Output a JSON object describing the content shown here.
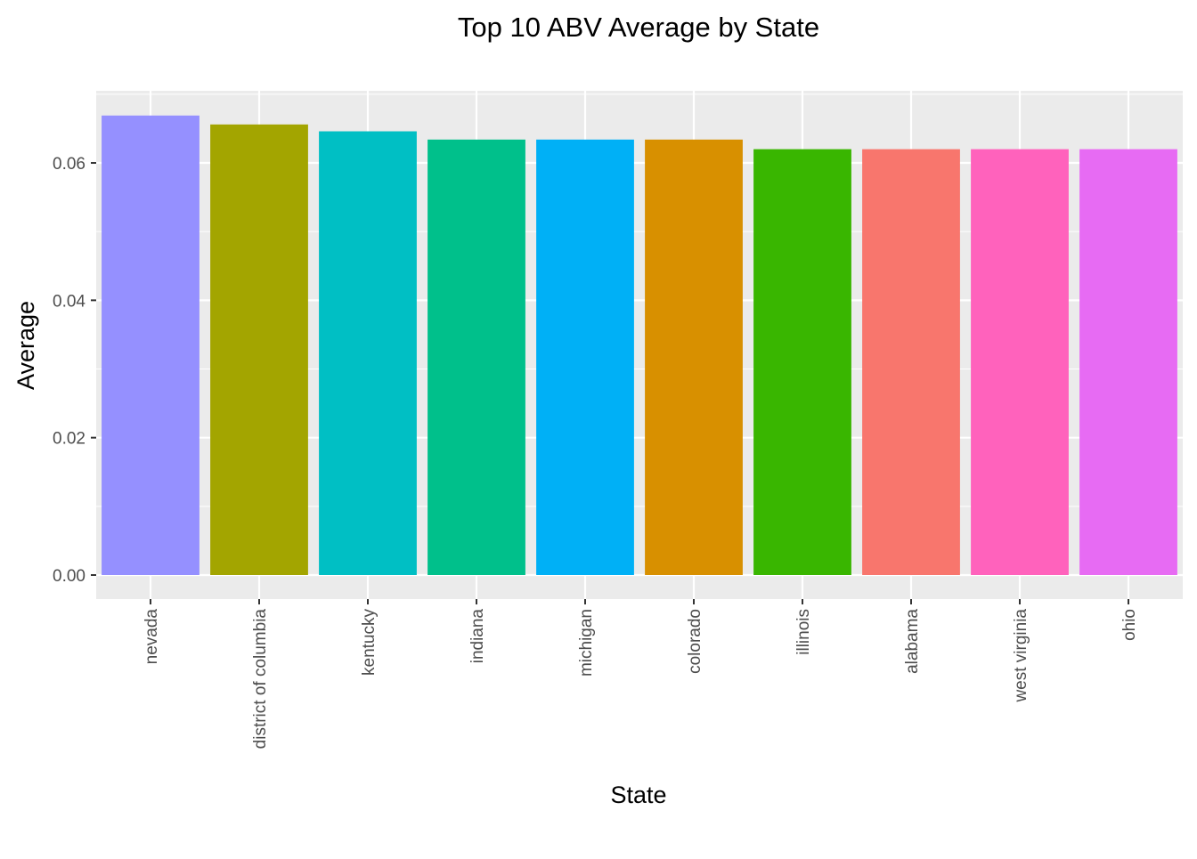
{
  "chart_data": {
    "type": "bar",
    "title": "Top 10 ABV Average by State",
    "xlabel": "State",
    "ylabel": "Average",
    "categories": [
      "nevada",
      "district of columbia",
      "kentucky",
      "indiana",
      "michigan",
      "colorado",
      "illinois",
      "alabama",
      "west virginia",
      "ohio"
    ],
    "values": [
      0.0669,
      0.0656,
      0.0646,
      0.0634,
      0.0634,
      0.0634,
      0.062,
      0.062,
      0.062,
      0.062
    ],
    "bar_colors": [
      "#9590FF",
      "#A3A500",
      "#00BFC4",
      "#00C08B",
      "#00B0F6",
      "#D89000",
      "#39B600",
      "#F8766D",
      "#FF62BC",
      "#E76BF3"
    ],
    "y_ticks": [
      0.0,
      0.02,
      0.04,
      0.06
    ],
    "y_tick_labels": [
      "0.00",
      "0.02",
      "0.04",
      "0.06"
    ],
    "ylim": [
      -0.0035,
      0.0705
    ],
    "grid": true,
    "legend": "none",
    "panel_background": "#EBEBEB",
    "grid_color": "#FFFFFF"
  }
}
